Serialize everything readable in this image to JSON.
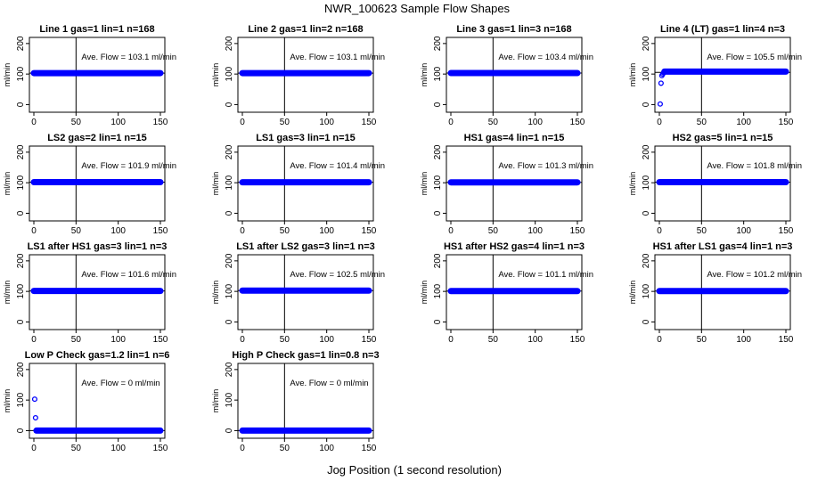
{
  "figure": {
    "title": "NWR_100623  Sample Flow Shapes",
    "xlabel": "Jog Position (1 second resolution)"
  },
  "colors": {
    "points": "#0000ff",
    "lines": "#000000"
  },
  "chart_data": [
    {
      "type": "scatter",
      "title": "Line 1 gas=1 lin=1 n=168",
      "ylabel": "ml/min",
      "annotation": "Ave. Flow =  103.1  ml/min",
      "xlim": [
        0,
        150
      ],
      "ylim": [
        -25,
        220
      ],
      "xticks": [
        0,
        50,
        100,
        150
      ],
      "yticks": [
        0,
        100,
        200
      ],
      "vline": 50,
      "hline": 103.1,
      "series": [
        {
          "kind": "flat",
          "x_start": 0,
          "x_end": 150,
          "value": 103.1
        }
      ]
    },
    {
      "type": "scatter",
      "title": "Line 2 gas=1 lin=2 n=168",
      "ylabel": "ml/min",
      "annotation": "Ave. Flow =  103.1  ml/min",
      "xlim": [
        0,
        150
      ],
      "ylim": [
        -25,
        220
      ],
      "xticks": [
        0,
        50,
        100,
        150
      ],
      "yticks": [
        0,
        100,
        200
      ],
      "vline": 50,
      "hline": 103.1,
      "series": [
        {
          "kind": "flat",
          "x_start": 0,
          "x_end": 150,
          "value": 103.1
        }
      ]
    },
    {
      "type": "scatter",
      "title": "Line 3 gas=1 lin=3 n=168",
      "ylabel": "ml/min",
      "annotation": "Ave. Flow =  103.4  ml/min",
      "xlim": [
        0,
        150
      ],
      "ylim": [
        -25,
        220
      ],
      "xticks": [
        0,
        50,
        100,
        150
      ],
      "yticks": [
        0,
        100,
        200
      ],
      "vline": 50,
      "hline": 103.4,
      "series": [
        {
          "kind": "flat",
          "x_start": 0,
          "x_end": 150,
          "value": 103.4
        }
      ]
    },
    {
      "type": "scatter",
      "title": "Line 4 (LT) gas=1 lin=4 n=3",
      "ylabel": "ml/min",
      "annotation": "Ave. Flow =  105.5  ml/min",
      "xlim": [
        0,
        150
      ],
      "ylim": [
        -25,
        220
      ],
      "xticks": [
        0,
        50,
        100,
        150
      ],
      "yticks": [
        0,
        100,
        200
      ],
      "vline": 50,
      "hline": 105.5,
      "series": [
        {
          "kind": "flat",
          "x_start": 6,
          "x_end": 150,
          "value": 108
        },
        {
          "kind": "points",
          "x": [
            1,
            2,
            3,
            4,
            5
          ],
          "y": [
            2,
            70,
            95,
            100,
            104
          ]
        }
      ]
    },
    {
      "type": "scatter",
      "title": "LS2 gas=2 lin=1 n=15",
      "ylabel": "ml/min",
      "annotation": "Ave. Flow =  101.9  ml/min",
      "xlim": [
        0,
        150
      ],
      "ylim": [
        -25,
        220
      ],
      "xticks": [
        0,
        50,
        100,
        150
      ],
      "yticks": [
        0,
        100,
        200
      ],
      "vline": 50,
      "hline": 101.9,
      "series": [
        {
          "kind": "flat",
          "x_start": 0,
          "x_end": 150,
          "value": 101.9
        }
      ]
    },
    {
      "type": "scatter",
      "title": "LS1 gas=3 lin=1 n=15",
      "ylabel": "ml/min",
      "annotation": "Ave. Flow =  101.4  ml/min",
      "xlim": [
        0,
        150
      ],
      "ylim": [
        -25,
        220
      ],
      "xticks": [
        0,
        50,
        100,
        150
      ],
      "yticks": [
        0,
        100,
        200
      ],
      "vline": 50,
      "hline": 101.4,
      "series": [
        {
          "kind": "flat",
          "x_start": 0,
          "x_end": 150,
          "value": 101.4
        }
      ]
    },
    {
      "type": "scatter",
      "title": "HS1 gas=4 lin=1 n=15",
      "ylabel": "ml/min",
      "annotation": "Ave. Flow =  101.3  ml/min",
      "xlim": [
        0,
        150
      ],
      "ylim": [
        -25,
        220
      ],
      "xticks": [
        0,
        50,
        100,
        150
      ],
      "yticks": [
        0,
        100,
        200
      ],
      "vline": 50,
      "hline": 101.3,
      "series": [
        {
          "kind": "flat",
          "x_start": 0,
          "x_end": 150,
          "value": 101.3
        }
      ]
    },
    {
      "type": "scatter",
      "title": "HS2 gas=5 lin=1 n=15",
      "ylabel": "ml/min",
      "annotation": "Ave. Flow =  101.8  ml/min",
      "xlim": [
        0,
        150
      ],
      "ylim": [
        -25,
        220
      ],
      "xticks": [
        0,
        50,
        100,
        150
      ],
      "yticks": [
        0,
        100,
        200
      ],
      "vline": 50,
      "hline": 101.8,
      "series": [
        {
          "kind": "flat",
          "x_start": 0,
          "x_end": 150,
          "value": 101.8
        }
      ]
    },
    {
      "type": "scatter",
      "title": "LS1 after HS1 gas=3 lin=1 n=3",
      "ylabel": "ml/min",
      "annotation": "Ave. Flow =  101.6  ml/min",
      "xlim": [
        0,
        150
      ],
      "ylim": [
        -25,
        220
      ],
      "xticks": [
        0,
        50,
        100,
        150
      ],
      "yticks": [
        0,
        100,
        200
      ],
      "vline": 50,
      "hline": 101.6,
      "series": [
        {
          "kind": "flat",
          "x_start": 0,
          "x_end": 150,
          "value": 101.6
        }
      ]
    },
    {
      "type": "scatter",
      "title": "LS1 after LS2 gas=3 lin=1 n=3",
      "ylabel": "ml/min",
      "annotation": "Ave. Flow =  102.5  ml/min",
      "xlim": [
        0,
        150
      ],
      "ylim": [
        -25,
        220
      ],
      "xticks": [
        0,
        50,
        100,
        150
      ],
      "yticks": [
        0,
        100,
        200
      ],
      "vline": 50,
      "hline": 102.5,
      "series": [
        {
          "kind": "flat",
          "x_start": 0,
          "x_end": 150,
          "value": 102.5
        }
      ]
    },
    {
      "type": "scatter",
      "title": "HS1 after HS2 gas=4 lin=1 n=3",
      "ylabel": "ml/min",
      "annotation": "Ave. Flow =  101.1  ml/min",
      "xlim": [
        0,
        150
      ],
      "ylim": [
        -25,
        220
      ],
      "xticks": [
        0,
        50,
        100,
        150
      ],
      "yticks": [
        0,
        100,
        200
      ],
      "vline": 50,
      "hline": 101.1,
      "series": [
        {
          "kind": "flat",
          "x_start": 0,
          "x_end": 150,
          "value": 101.1
        }
      ]
    },
    {
      "type": "scatter",
      "title": "HS1 after LS1 gas=4 lin=1 n=3",
      "ylabel": "ml/min",
      "annotation": "Ave. Flow =  101.2  ml/min",
      "xlim": [
        0,
        150
      ],
      "ylim": [
        -25,
        220
      ],
      "xticks": [
        0,
        50,
        100,
        150
      ],
      "yticks": [
        0,
        100,
        200
      ],
      "vline": 50,
      "hline": 101.2,
      "series": [
        {
          "kind": "flat",
          "x_start": 0,
          "x_end": 150,
          "value": 101.2
        }
      ]
    },
    {
      "type": "scatter",
      "title": "Low P Check gas=1.2 lin=1 n=6",
      "ylabel": "ml/min",
      "annotation": "Ave. Flow =  0  ml/min",
      "xlim": [
        0,
        150
      ],
      "ylim": [
        -25,
        220
      ],
      "xticks": [
        0,
        50,
        100,
        150
      ],
      "yticks": [
        0,
        100,
        200
      ],
      "vline": 50,
      "hline": 0,
      "series": [
        {
          "kind": "flat",
          "x_start": 3,
          "x_end": 150,
          "value": 0
        },
        {
          "kind": "points",
          "x": [
            1,
            2
          ],
          "y": [
            103,
            42
          ]
        }
      ]
    },
    {
      "type": "scatter",
      "title": "High P Check gas=1 lin=0.8 n=3",
      "ylabel": "ml/min",
      "annotation": "Ave. Flow =  0  ml/min",
      "xlim": [
        0,
        150
      ],
      "ylim": [
        -25,
        220
      ],
      "xticks": [
        0,
        50,
        100,
        150
      ],
      "yticks": [
        0,
        100,
        200
      ],
      "vline": 50,
      "hline": 0,
      "series": [
        {
          "kind": "flat",
          "x_start": 0,
          "x_end": 150,
          "value": 0
        }
      ]
    }
  ]
}
